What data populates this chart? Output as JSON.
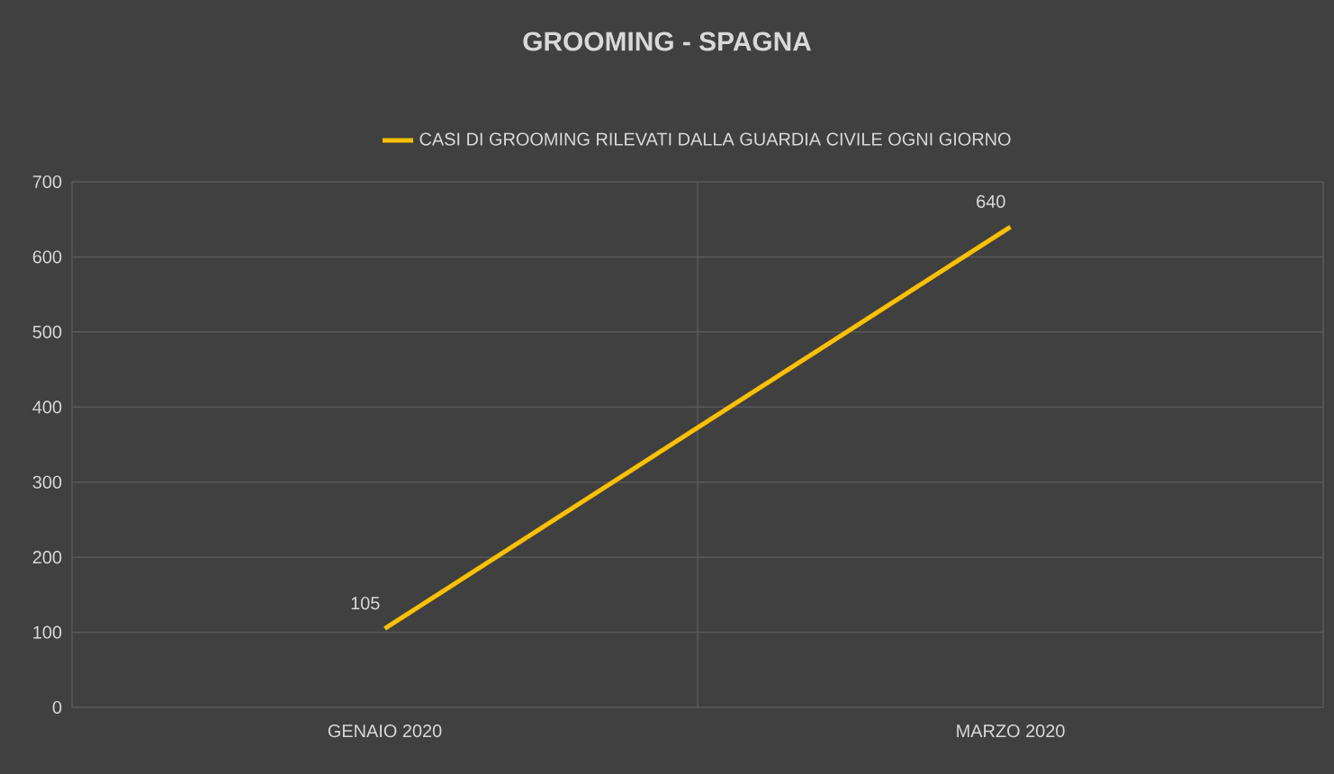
{
  "chart_data": {
    "type": "line",
    "title": "GROOMING - SPAGNA",
    "categories": [
      "GENAIO 2020",
      "MARZO 2020"
    ],
    "series": [
      {
        "name": "CASI DI GROOMING RILEVATI DALLA GUARDIA CIVILE OGNI GIORNO",
        "color": "#ffc000",
        "values": [
          105,
          640
        ]
      }
    ],
    "ylim": [
      0,
      700
    ],
    "yticks": [
      0,
      100,
      200,
      300,
      400,
      500,
      600,
      700
    ],
    "grid": true,
    "legend": "top",
    "data_labels": true,
    "marker": "none",
    "line_style": "solid"
  }
}
